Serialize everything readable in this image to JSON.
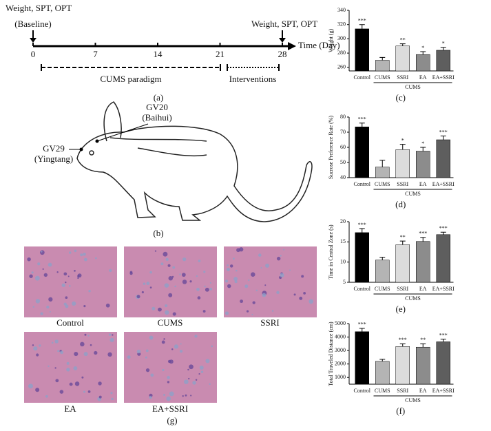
{
  "timeline": {
    "start_label": "Weight, SPT, OPT",
    "start_note": "(Baseline)",
    "end_label": "Weight, SPT, OPT",
    "ticks": [
      0,
      7,
      14,
      21,
      28
    ],
    "xlim": [
      0,
      28
    ],
    "axis_label": "Time (Day)",
    "phase1": "CUMS paradigm",
    "phase2": "Interventions",
    "panel": "(a)"
  },
  "rat": {
    "point1": "GV20",
    "point1_name": "(Baihui)",
    "point2": "GV29",
    "point2_name": "(Yingtang)",
    "panel": "(b)"
  },
  "histology": {
    "panels": [
      "Control",
      "CUMS",
      "SSRI",
      "EA",
      "EA+SSRI"
    ],
    "panel": "(g)"
  },
  "chart_data": [
    {
      "type": "bar",
      "ylabel": "Weight (g)",
      "categories": [
        "Control",
        "CUMS",
        "SSRI",
        "EA",
        "EA+SSRI"
      ],
      "values": [
        314,
        270,
        290,
        278,
        284
      ],
      "errors": [
        6,
        4,
        3,
        4,
        4
      ],
      "annotations": [
        "***",
        null,
        "**",
        "*",
        "*"
      ],
      "colors": [
        "#000000",
        "#b4b4b4",
        "#dcdcdc",
        "#8c8c8c",
        "#5e5e5e"
      ],
      "ylim": [
        255,
        340
      ],
      "yticks": [
        260,
        280,
        300,
        320,
        340
      ],
      "group_label": "CUMS",
      "panel": "(c)"
    },
    {
      "type": "bar",
      "ylabel": "Sucrose Preference Rate (%)",
      "categories": [
        "Control",
        "CUMS",
        "SSRI",
        "EA",
        "EA+SSRI"
      ],
      "values": [
        73.5,
        47,
        58.5,
        57.5,
        65
      ],
      "errors": [
        2.5,
        4.5,
        3.5,
        2.5,
        2.5
      ],
      "annotations": [
        "***",
        null,
        "*",
        "*",
        "***"
      ],
      "colors": [
        "#000000",
        "#b4b4b4",
        "#dcdcdc",
        "#8c8c8c",
        "#5e5e5e"
      ],
      "ylim": [
        40,
        80
      ],
      "yticks": [
        40,
        50,
        60,
        70,
        80
      ],
      "group_label": "CUMS",
      "panel": "(d)"
    },
    {
      "type": "bar",
      "ylabel": "Time in Central Zone (s)",
      "categories": [
        "Control",
        "CUMS",
        "SSRI",
        "EA",
        "EA+SSRI"
      ],
      "values": [
        17.3,
        10.5,
        14.3,
        15.1,
        16.8
      ],
      "errors": [
        1,
        0.7,
        0.9,
        1,
        0.6
      ],
      "annotations": [
        "***",
        null,
        "**",
        "***",
        "***"
      ],
      "colors": [
        "#000000",
        "#b4b4b4",
        "#dcdcdc",
        "#8c8c8c",
        "#5e5e5e"
      ],
      "ylim": [
        5,
        20
      ],
      "yticks": [
        5,
        10,
        15,
        20
      ],
      "group_label": "CUMS",
      "panel": "(e)"
    },
    {
      "type": "bar",
      "ylabel": "Total Traveled Distance (cm)",
      "categories": [
        "Control",
        "CUMS",
        "SSRI",
        "EA",
        "EA+SSRI"
      ],
      "values": [
        4400,
        2200,
        3300,
        3250,
        3650
      ],
      "errors": [
        250,
        150,
        200,
        250,
        200
      ],
      "annotations": [
        "***",
        null,
        "***",
        "**",
        "***"
      ],
      "colors": [
        "#000000",
        "#b4b4b4",
        "#dcdcdc",
        "#8c8c8c",
        "#5e5e5e"
      ],
      "ylim": [
        500,
        5000
      ],
      "yticks": [
        1000,
        2000,
        3000,
        4000,
        5000
      ],
      "group_label": "CUMS",
      "panel": "(f)"
    }
  ]
}
